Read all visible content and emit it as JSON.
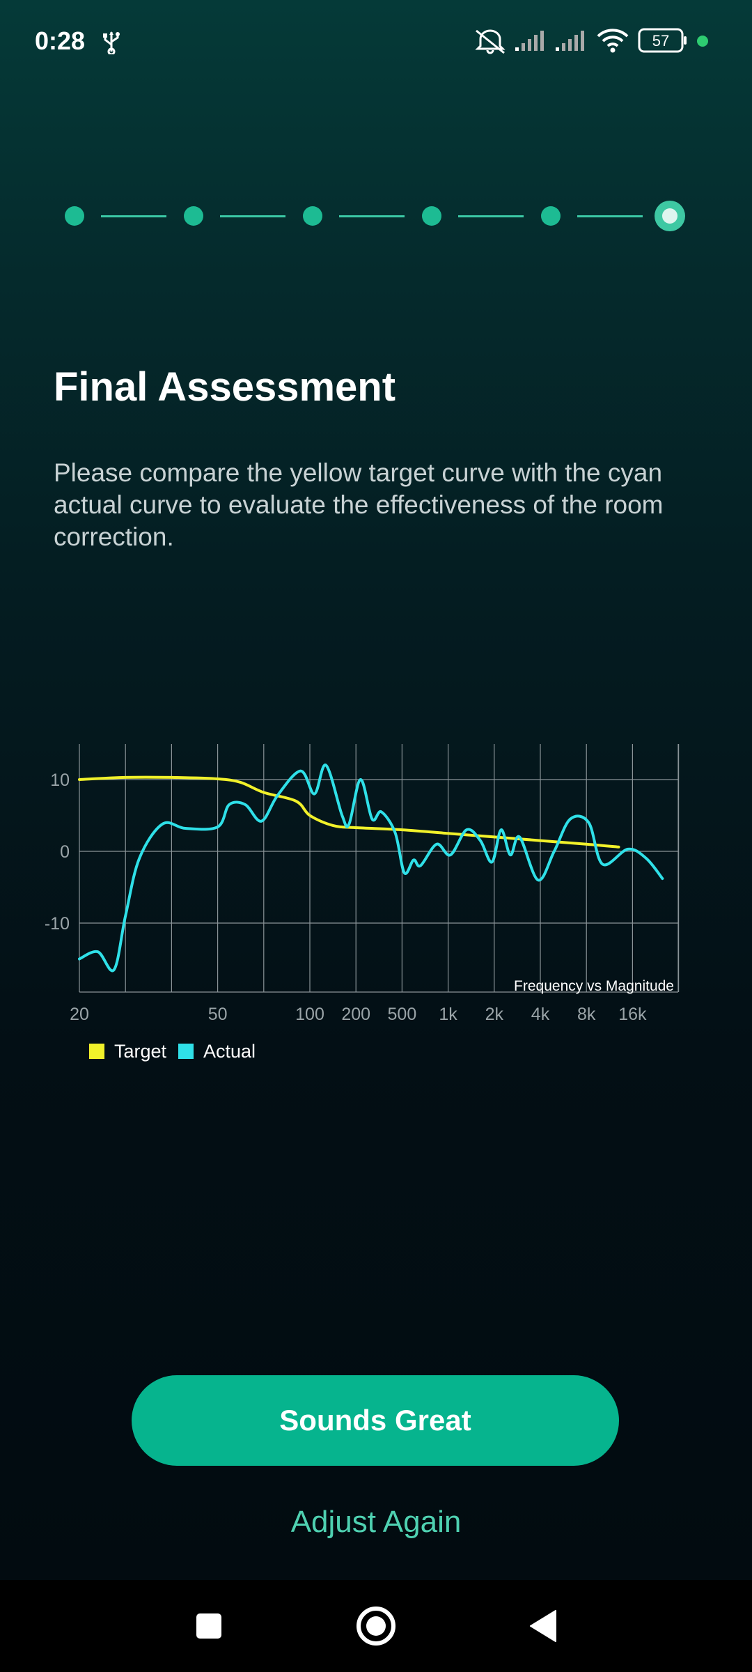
{
  "status_bar": {
    "time": "0:28",
    "battery": "57",
    "icons": [
      "usb-icon",
      "mute-icon",
      "signal-icon",
      "signal-icon",
      "wifi-icon",
      "battery-icon",
      "dot-icon"
    ]
  },
  "stepper": {
    "total_steps": 6,
    "current_step": 6
  },
  "page": {
    "title": "Final Assessment",
    "description": "Please compare the yellow target curve with the cyan actual curve to evaluate the effectiveness of the room correction."
  },
  "chart_data": {
    "type": "line",
    "annotation": "Frequency vs Magnitude",
    "x_tick_labels": [
      "20",
      "50",
      "100",
      "200",
      "500",
      "1k",
      "2k",
      "4k",
      "8k",
      "16k"
    ],
    "y_tick_labels": [
      "10",
      "0",
      "-10"
    ],
    "ylim": [
      -20,
      15
    ],
    "grid": true,
    "legend_position": "bottom-left",
    "series": [
      {
        "name": "Target",
        "color": "#f1f12a",
        "values": [
          [
            0,
            10
          ],
          [
            1,
            10.3
          ],
          [
            2,
            10.3
          ],
          [
            3,
            10.1
          ],
          [
            3.5,
            9.6
          ],
          [
            4,
            8.2
          ],
          [
            4.7,
            7
          ],
          [
            5,
            5
          ],
          [
            5.5,
            3.6
          ],
          [
            6,
            3.3
          ],
          [
            7,
            3
          ],
          [
            8,
            2.5
          ],
          [
            9,
            2
          ],
          [
            10,
            1.5
          ],
          [
            11,
            1
          ],
          [
            11.7,
            0.6
          ]
        ]
      },
      {
        "name": "Actual",
        "color": "#2fe0e8",
        "values": [
          [
            0,
            -15
          ],
          [
            0.4,
            -14
          ],
          [
            0.75,
            -16.5
          ],
          [
            1,
            -9
          ],
          [
            1.3,
            -1
          ],
          [
            1.8,
            3.8
          ],
          [
            2.3,
            3.2
          ],
          [
            3,
            3.4
          ],
          [
            3.25,
            6.5
          ],
          [
            3.6,
            6.5
          ],
          [
            3.95,
            4.2
          ],
          [
            4.3,
            7.8
          ],
          [
            4.8,
            11.2
          ],
          [
            5.1,
            8
          ],
          [
            5.35,
            12
          ],
          [
            5.7,
            5
          ],
          [
            5.85,
            3.8
          ],
          [
            6.1,
            10
          ],
          [
            6.35,
            4.5
          ],
          [
            6.55,
            5.5
          ],
          [
            6.85,
            2.6
          ],
          [
            7.05,
            -3
          ],
          [
            7.25,
            -1.2
          ],
          [
            7.4,
            -2
          ],
          [
            7.75,
            1
          ],
          [
            8.05,
            -0.5
          ],
          [
            8.4,
            3
          ],
          [
            8.7,
            1.5
          ],
          [
            8.95,
            -1.5
          ],
          [
            9.15,
            3
          ],
          [
            9.35,
            -0.5
          ],
          [
            9.55,
            2
          ],
          [
            9.95,
            -4
          ],
          [
            10.3,
            0
          ],
          [
            10.65,
            4.5
          ],
          [
            11.05,
            4
          ],
          [
            11.35,
            -1.8
          ],
          [
            11.9,
            0.3
          ],
          [
            12.3,
            -1
          ],
          [
            12.65,
            -3.8
          ]
        ]
      }
    ]
  },
  "buttons": {
    "primary": "Sounds Great",
    "secondary": "Adjust Again"
  },
  "nav": {
    "icons": [
      "recents-square-icon",
      "home-circle-icon",
      "back-triangle-icon"
    ]
  }
}
